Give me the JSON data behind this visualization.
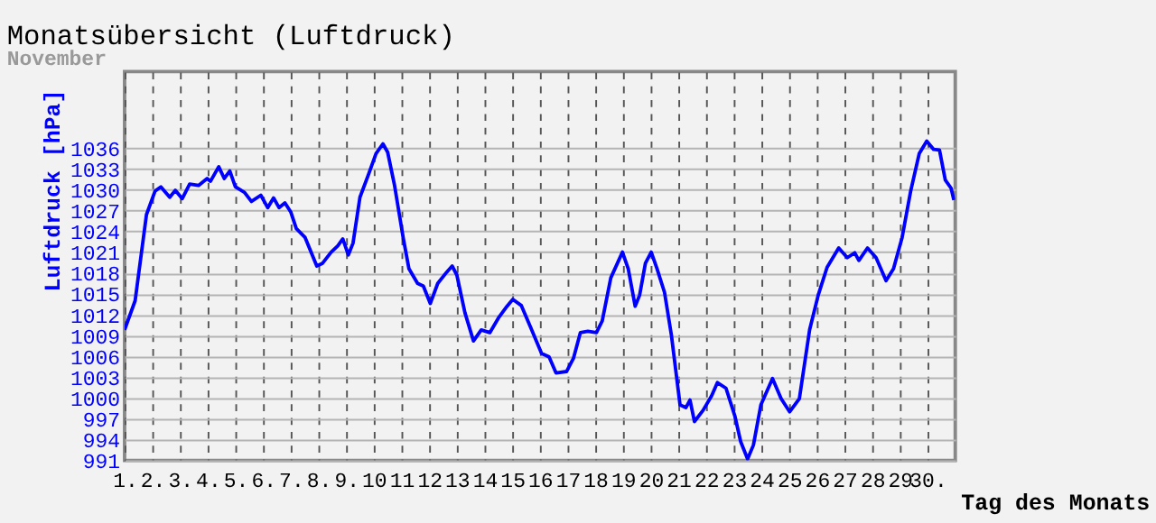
{
  "chart_data": {
    "type": "line",
    "title": "Monatsübersicht (Luftdruck)",
    "subtitle": "November",
    "xlabel": "Tag des Monats",
    "ylabel": "Luftdruck [hPa]",
    "xlim": [
      1,
      31
    ],
    "ylim": [
      991,
      1047
    ],
    "xticks": [
      {
        "value": 1,
        "label": "1."
      },
      {
        "value": 2,
        "label": "2."
      },
      {
        "value": 3,
        "label": "3."
      },
      {
        "value": 4,
        "label": "4."
      },
      {
        "value": 5,
        "label": "5."
      },
      {
        "value": 6,
        "label": "6."
      },
      {
        "value": 7,
        "label": "7."
      },
      {
        "value": 8,
        "label": "8."
      },
      {
        "value": 9,
        "label": "9."
      },
      10,
      11,
      12,
      13,
      14,
      15,
      16,
      17,
      18,
      19,
      20,
      21,
      22,
      23,
      24,
      25,
      26,
      27,
      28,
      29,
      {
        "value": 30,
        "label": "30."
      }
    ],
    "yticks": [
      991,
      994,
      997,
      1000,
      1003,
      1006,
      1009,
      1012,
      1015,
      1018,
      1021,
      1024,
      1027,
      1030,
      1033,
      1036
    ],
    "grid": true,
    "line_style": "solid",
    "series": [
      {
        "color": "#0000ff",
        "x": [
          1,
          1.38,
          1.79,
          2.1,
          2.31,
          2.63,
          2.83,
          3.08,
          3.35,
          3.67,
          3.98,
          4.1,
          4.4,
          4.6,
          4.8,
          5.0,
          5.33,
          5.58,
          5.92,
          6.17,
          6.38,
          6.58,
          6.79,
          7.0,
          7.2,
          7.52,
          7.94,
          8.15,
          8.46,
          8.7,
          8.88,
          9.08,
          9.25,
          9.5,
          9.81,
          10.08,
          10.33,
          10.5,
          10.75,
          11.06,
          11.27,
          11.58,
          11.79,
          12.04,
          12.31,
          12.63,
          12.83,
          13.0,
          13.29,
          13.6,
          13.88,
          14.19,
          14.5,
          14.81,
          15.02,
          15.33,
          15.65,
          16.06,
          16.33,
          16.58,
          16.96,
          17.21,
          17.46,
          17.73,
          18.04,
          18.25,
          18.56,
          18.98,
          19.19,
          19.44,
          19.6,
          19.81,
          20.02,
          20.23,
          20.5,
          20.75,
          21.06,
          21.27,
          21.42,
          21.58,
          21.89,
          22.2,
          22.41,
          22.72,
          23.04,
          23.25,
          23.5,
          23.71,
          23.98,
          24.4,
          24.71,
          25.02,
          25.37,
          25.74,
          26.05,
          26.37,
          26.79,
          27.1,
          27.37,
          27.52,
          27.83,
          28.14,
          28.5,
          28.77,
          29.08,
          29.39,
          29.7,
          29.97,
          30.22,
          30.43,
          30.64,
          30.85,
          30.95
        ],
        "values": [
          1009.8,
          1014,
          1026.4,
          1029.8,
          1030.4,
          1028.9,
          1029.9,
          1028.7,
          1030.8,
          1030.6,
          1031.6,
          1031.2,
          1033.3,
          1031.6,
          1032.7,
          1030.4,
          1029.6,
          1028.3,
          1029.2,
          1027.4,
          1028.8,
          1027.4,
          1028.1,
          1026.8,
          1024.4,
          1023.1,
          1019,
          1019.4,
          1021,
          1021.9,
          1022.9,
          1020.6,
          1022.3,
          1028.9,
          1032.2,
          1035.2,
          1036.6,
          1035.4,
          1030.6,
          1023.1,
          1018.6,
          1016.5,
          1016.1,
          1013.6,
          1016.5,
          1018.1,
          1019,
          1017.7,
          1012.3,
          1008.2,
          1009.8,
          1009.4,
          1011.5,
          1013.2,
          1014.2,
          1013.3,
          1010.3,
          1006.4,
          1005.9,
          1003.6,
          1003.8,
          1005.7,
          1009.4,
          1009.6,
          1009.4,
          1011.1,
          1017.3,
          1021,
          1018.6,
          1013.2,
          1014.8,
          1019.4,
          1021,
          1018.6,
          1015.2,
          1009,
          999,
          998.6,
          999.7,
          996.6,
          998.2,
          1000.3,
          1002.2,
          1001.4,
          997.4,
          993.7,
          991.2,
          993.2,
          999,
          1002.8,
          999.9,
          998,
          999.9,
          1009.8,
          1014.8,
          1018.8,
          1021.6,
          1020.2,
          1020.9,
          1019.8,
          1021.6,
          1020.2,
          1016.9,
          1018.6,
          1023.1,
          1029.8,
          1035.2,
          1037,
          1035.8,
          1035.7,
          1031.4,
          1030.2,
          1028.5
        ]
      }
    ]
  }
}
